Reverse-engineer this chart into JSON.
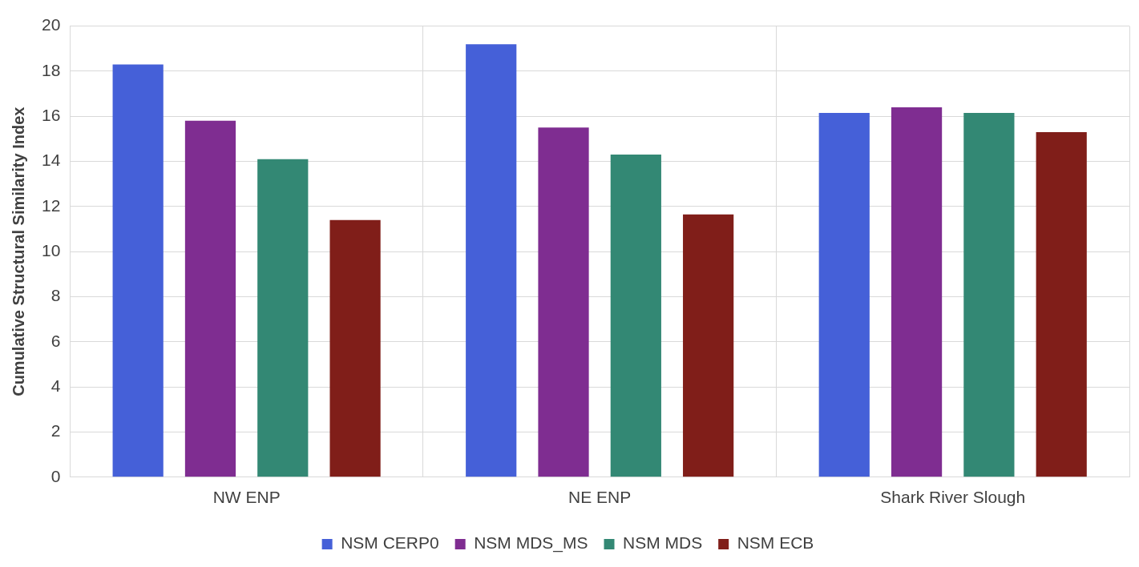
{
  "chart_data": {
    "type": "bar",
    "ylabel": "Cumulative Structural Similarity Index",
    "categories": [
      "NW ENP",
      "NE ENP",
      "Shark River Slough"
    ],
    "series": [
      {
        "name": "NSM CERP0",
        "color": "#4560d8",
        "values": [
          18.3,
          19.2,
          16.15
        ]
      },
      {
        "name": "NSM MDS_MS",
        "color": "#7f2d91",
        "values": [
          15.8,
          15.5,
          16.4
        ]
      },
      {
        "name": "NSM MDS",
        "color": "#338874",
        "values": [
          14.1,
          14.3,
          16.15
        ]
      },
      {
        "name": "NSM ECB",
        "color": "#801e19",
        "values": [
          11.4,
          11.65,
          15.3
        ]
      }
    ],
    "ylim": [
      0,
      20
    ],
    "yticks": [
      0,
      2,
      4,
      6,
      8,
      10,
      12,
      14,
      16,
      18,
      20
    ],
    "grid": true,
    "legend": "bottom"
  }
}
